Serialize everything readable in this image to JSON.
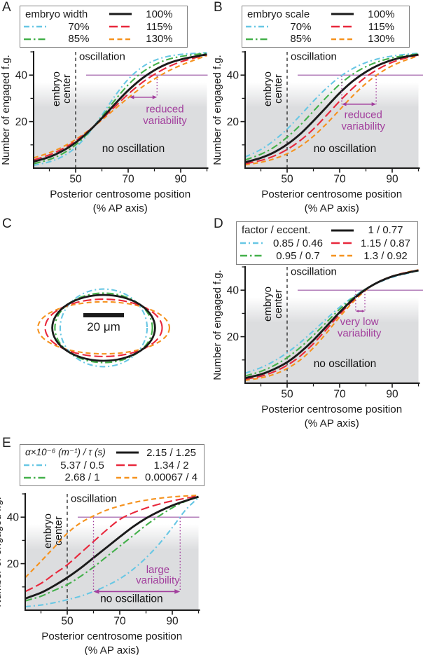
{
  "figure": {
    "panel_letters": [
      "A",
      "B",
      "C",
      "D",
      "E"
    ]
  },
  "colors": {
    "black": "#1b1b1b",
    "cyan": "#68c7e4",
    "green": "#43b04a",
    "red": "#e8283c",
    "orange": "#f5921e",
    "purple": "#a23f9d",
    "threshold": "#9a55a4",
    "shade": "#dcdddf",
    "axis": "#1b1b1b"
  },
  "chart_data": [
    {
      "panel": "A",
      "type": "line",
      "legend": {
        "title": "embryo width",
        "black": "100%",
        "cyan": "70%",
        "green": "85%",
        "red": "115%",
        "orange": "130%"
      },
      "xlabel": "Posterior centrosome position",
      "xlabel_line2": "(% AP axis)",
      "ylabel": "Number of engaged f.g.",
      "xlim": [
        34,
        100
      ],
      "ylim": [
        0,
        50
      ],
      "xticks": [
        50,
        70,
        90
      ],
      "yticks": [
        20,
        40
      ],
      "x_minor": [
        40,
        60,
        80,
        100
      ],
      "y_minor": [
        10,
        30,
        50
      ],
      "threshold_y": 40,
      "embryo_center_x": 50,
      "labels": {
        "oscillation": "oscillation",
        "oscillation_pos": [
          50.8,
          46.5
        ],
        "no_oscillation": "no oscillation",
        "no_oscillation_pos": [
          72,
          7
        ],
        "embryo_center": [
          "embryo",
          "center"
        ]
      },
      "annotation": {
        "lines": [
          "reduced",
          "variability"
        ],
        "arrow": [
          70.5,
          81
        ],
        "arrow_y": 30.5,
        "dotted_x": [
          81
        ],
        "text_x": 84,
        "text_y": [
          24,
          19
        ]
      },
      "x_samples": [
        34,
        40,
        45,
        50,
        55,
        60,
        65,
        70,
        75,
        80,
        85,
        90,
        95,
        100
      ],
      "series": [
        {
          "key": "cyan",
          "label": "70%",
          "dash": "dashdot_short",
          "values": [
            1.2,
            2.7,
            5.0,
            8.9,
            15.0,
            22.8,
            31.1,
            38.2,
            43.2,
            46.3,
            48.0,
            48.9,
            49.3,
            49.6
          ]
        },
        {
          "key": "green",
          "label": "85%",
          "dash": "dashdot",
          "values": [
            1.9,
            3.7,
            6.2,
            10.0,
            15.4,
            22.1,
            29.3,
            35.8,
            40.9,
            44.4,
            46.7,
            48.0,
            48.8,
            49.4
          ]
        },
        {
          "key": "orange",
          "label": "130%",
          "dash": "dash",
          "values": [
            4.4,
            6.6,
            9.1,
            12.3,
            16.3,
            20.7,
            25.5,
            30.2,
            34.6,
            38.3,
            41.6,
            44.2,
            46.4,
            48.4
          ]
        },
        {
          "key": "red",
          "label": "115%",
          "dash": "longdash",
          "values": [
            3.5,
            5.7,
            8.3,
            11.7,
            16.1,
            21.1,
            26.5,
            31.8,
            36.5,
            40.3,
            43.4,
            45.7,
            47.3,
            48.7
          ]
        },
        {
          "key": "black",
          "label": "100%",
          "dash": "solid",
          "values": [
            2.8,
            4.8,
            7.4,
            11.0,
            15.8,
            21.5,
            27.6,
            33.4,
            38.3,
            42.1,
            44.9,
            46.7,
            47.9,
            48.9
          ]
        }
      ]
    },
    {
      "panel": "B",
      "type": "line",
      "legend": {
        "title": "embryo scale",
        "black": "100%",
        "cyan": "70%",
        "green": "85%",
        "red": "115%",
        "orange": "130%"
      },
      "xlabel": "Posterior centrosome position",
      "xlabel_line2": "(% AP axis)",
      "ylabel": "Number of engaged f.g.",
      "xlim": [
        34,
        100
      ],
      "ylim": [
        0,
        50
      ],
      "xticks": [
        50,
        70,
        90
      ],
      "yticks": [
        20,
        40
      ],
      "x_minor": [
        40,
        60,
        80,
        100
      ],
      "y_minor": [
        10,
        30,
        50
      ],
      "threshold_y": 40,
      "embryo_center_x": 50,
      "labels": {
        "oscillation": "oscillation",
        "oscillation_pos": [
          50.8,
          46.5
        ],
        "no_oscillation": "no oscillation",
        "no_oscillation_pos": [
          72,
          7
        ],
        "embryo_center": [
          "embryo",
          "center"
        ]
      },
      "annotation": {
        "lines": [
          "reduced",
          "variability"
        ],
        "arrow": [
          70.8,
          83.9
        ],
        "arrow_y": 27.5,
        "dotted_x": [
          70.8,
          83.9
        ],
        "text_x": 79,
        "text_y": [
          21.5,
          16.5
        ]
      },
      "x_samples": [
        34,
        40,
        45,
        50,
        55,
        60,
        65,
        70,
        75,
        80,
        85,
        90,
        95,
        100
      ],
      "series": [
        {
          "key": "cyan",
          "label": "70%",
          "dash": "dashdot_short",
          "values": [
            4.8,
            8.0,
            11.9,
            16.8,
            22.7,
            28.8,
            34.4,
            39.2,
            42.8,
            45.4,
            47.1,
            48.2,
            48.9,
            49.4
          ]
        },
        {
          "key": "green",
          "label": "85%",
          "dash": "dashdot",
          "values": [
            3.5,
            6.0,
            9.0,
            13.3,
            18.5,
            24.5,
            30.5,
            36.0,
            40.4,
            43.6,
            45.9,
            47.4,
            48.4,
            49.1
          ]
        },
        {
          "key": "orange",
          "label": "130%",
          "dash": "dash",
          "values": [
            1.4,
            2.5,
            4.0,
            6.2,
            9.4,
            13.7,
            19.1,
            25.1,
            31.1,
            36.4,
            40.7,
            44.0,
            46.4,
            48.3
          ]
        },
        {
          "key": "red",
          "label": "115%",
          "dash": "longdash",
          "values": [
            1.9,
            3.3,
            5.2,
            8.0,
            11.9,
            16.8,
            22.7,
            28.8,
            34.4,
            39.2,
            42.8,
            45.5,
            47.3,
            48.6
          ]
        },
        {
          "key": "black",
          "label": "100%",
          "dash": "solid",
          "values": [
            2.5,
            4.4,
            6.8,
            10.2,
            14.7,
            20.3,
            26.3,
            32.3,
            37.4,
            41.4,
            44.4,
            46.5,
            47.9,
            48.8
          ]
        }
      ]
    },
    {
      "panel": "C",
      "type": "ellipse-diagram",
      "scale_bar": {
        "label": "20 μm",
        "length_um": 20
      },
      "ellipses": [
        {
          "key": "cyan",
          "dash": "dashdot_short",
          "eccentricity": 0.46,
          "rx_um": 21.4,
          "ry_um": 19.1
        },
        {
          "key": "orange",
          "dash": "dash",
          "eccentricity": 0.92,
          "rx_um": 32.4,
          "ry_um": 12.8
        },
        {
          "key": "red",
          "dash": "longdash",
          "eccentricity": 0.87,
          "rx_um": 28.8,
          "ry_um": 14.1
        },
        {
          "key": "green",
          "dash": "dashdot",
          "eccentricity": 0.7,
          "rx_um": 24.0,
          "ry_um": 17.1
        },
        {
          "key": "black",
          "dash": "solid",
          "eccentricity": 0.77,
          "rx_um": 25.3,
          "ry_um": 16.2
        }
      ]
    },
    {
      "panel": "D",
      "type": "line",
      "legend": {
        "title": "factor / eccent.",
        "black": "1 / 0.77",
        "cyan": "0.85 / 0.46",
        "green": "0.95 / 0.7",
        "red": "1.15 / 0.87",
        "orange": "1.3 / 0.92"
      },
      "xlabel": "Posterior centrosome position",
      "xlabel_line2": "(% AP axis)",
      "ylabel": "Number of engaged f.g.",
      "xlim": [
        34,
        100
      ],
      "ylim": [
        0,
        50
      ],
      "xticks": [
        50,
        70,
        90
      ],
      "yticks": [
        20,
        40
      ],
      "x_minor": [
        40,
        60,
        80,
        100
      ],
      "y_minor": [
        10,
        30,
        50
      ],
      "threshold_y": 40,
      "embryo_center_x": 50,
      "labels": {
        "oscillation": "oscillation",
        "oscillation_pos": [
          50.8,
          46.5
        ],
        "no_oscillation": "no oscillation",
        "no_oscillation_pos": [
          72,
          7
        ],
        "embryo_center": [
          "embryo",
          "center"
        ]
      },
      "annotation": {
        "lines": [
          "very low",
          "variability"
        ],
        "arrow": [
          76.1,
          79.6
        ],
        "arrow_y": 31,
        "dotted_x": [
          76.1,
          79.6
        ],
        "text_x": 77.5,
        "text_y": [
          25,
          20
        ]
      },
      "x_samples": [
        34,
        40,
        45,
        50,
        55,
        60,
        65,
        70,
        75,
        80,
        85,
        90,
        95,
        100
      ],
      "series": [
        {
          "key": "cyan",
          "label": "0.85 / 0.46",
          "dash": "dashdot_short",
          "values": [
            4.3,
            6.7,
            9.5,
            13.1,
            17.5,
            22.5,
            27.7,
            32.7,
            37.0,
            40.6,
            43.4,
            45.5,
            47.0,
            48.3
          ]
        },
        {
          "key": "green",
          "label": "0.95 / 0.7",
          "dash": "dashdot",
          "values": [
            3.1,
            5.1,
            7.6,
            11.0,
            15.4,
            20.6,
            26.2,
            31.8,
            36.6,
            40.6,
            43.6,
            45.8,
            47.2,
            48.4
          ]
        },
        {
          "key": "orange",
          "label": "1.3 / 0.92",
          "dash": "dash",
          "values": [
            1.2,
            2.3,
            3.8,
            6.3,
            10.0,
            15.2,
            21.6,
            28.5,
            34.8,
            40.0,
            43.7,
            46.0,
            47.6,
            48.7
          ]
        },
        {
          "key": "red",
          "label": "1.15 / 0.87",
          "dash": "longdash",
          "values": [
            1.7,
            3.0,
            4.9,
            7.7,
            11.7,
            17.0,
            23.2,
            29.6,
            35.5,
            40.3,
            43.7,
            46.0,
            47.5,
            48.6
          ]
        },
        {
          "key": "black",
          "label": "1 / 0.77",
          "dash": "solid",
          "values": [
            2.2,
            3.8,
            6.0,
            9.0,
            13.3,
            18.5,
            24.5,
            30.5,
            36.0,
            40.4,
            43.6,
            45.9,
            47.3,
            48.5
          ]
        }
      ]
    },
    {
      "panel": "E",
      "type": "line",
      "legend": {
        "title": "α×10⁻⁶ (m⁻¹) / τ (s)",
        "black": "2.15 / 1.25",
        "cyan": "5.37 / 0.5",
        "green": "2.68 / 1",
        "red": "1.34 / 2",
        "orange": "0.00067 / 4"
      },
      "xlabel": "Posterior centrosome position",
      "xlabel_line2": "(% AP axis)",
      "ylabel": "Number of engaged f.g.",
      "xlim": [
        34,
        100
      ],
      "ylim": [
        0,
        50
      ],
      "xticks": [
        50,
        70,
        90
      ],
      "yticks": [
        20,
        40
      ],
      "x_minor": [
        40,
        60,
        80,
        100
      ],
      "y_minor": [
        10,
        30,
        50
      ],
      "threshold_y": 40,
      "embryo_center_x": 50,
      "labels": {
        "oscillation": "oscillation",
        "oscillation_pos": [
          50.8,
          46.5
        ],
        "no_oscillation": "no oscillation",
        "no_oscillation_pos": [
          74.5,
          3.4
        ],
        "embryo_center": [
          "embryo",
          "center"
        ]
      },
      "annotation": {
        "lines": [
          "large",
          "variability"
        ],
        "arrow": [
          60,
          93
        ],
        "arrow_y": 8,
        "dotted_x": [
          60,
          93
        ],
        "text_x": 84.5,
        "text_y": [
          16,
          11.5
        ]
      },
      "x_samples": [
        34,
        40,
        45,
        50,
        55,
        60,
        65,
        70,
        75,
        80,
        85,
        90,
        95,
        100
      ],
      "series": [
        {
          "key": "cyan",
          "label": "5.37 / 0.5",
          "dash": "dashdot_short",
          "values": [
            1.5,
            2.2,
            3.2,
            4.5,
            6.0,
            8.0,
            10.5,
            13.5,
            17.5,
            22.5,
            28.5,
            35.5,
            43.0,
            48.4
          ]
        },
        {
          "key": "green",
          "label": "2.68 / 1",
          "dash": "dashdot",
          "values": [
            4.0,
            6.0,
            8.5,
            11.0,
            14.5,
            18.5,
            23.0,
            27.5,
            32.0,
            36.5,
            40.5,
            44.0,
            46.8,
            48.6
          ]
        },
        {
          "key": "orange",
          "label": "0.00067 / 4",
          "dash": "dash",
          "values": [
            14.0,
            21.0,
            27.0,
            33.0,
            37.5,
            40.5,
            43.0,
            44.8,
            46.2,
            47.3,
            48.1,
            48.7,
            49.1,
            49.4
          ]
        },
        {
          "key": "red",
          "label": "1.34 / 2",
          "dash": "longdash",
          "values": [
            8.0,
            11.5,
            15.5,
            19.5,
            24.5,
            29.5,
            34.5,
            39.0,
            41.8,
            43.9,
            45.6,
            47.0,
            48.1,
            49.1
          ]
        },
        {
          "key": "black",
          "label": "2.15 / 1.25",
          "dash": "solid",
          "values": [
            5.0,
            7.5,
            10.5,
            14.0,
            18.0,
            22.5,
            27.0,
            31.5,
            35.8,
            39.5,
            42.5,
            45.0,
            47.0,
            48.8
          ]
        }
      ]
    }
  ]
}
